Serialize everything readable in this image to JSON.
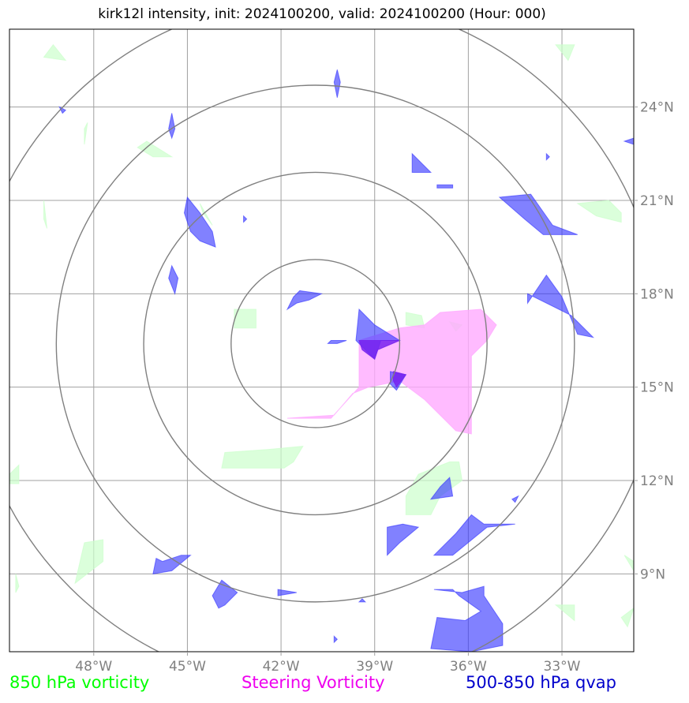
{
  "title": "kirk12l intensity, init: 2024100200, valid: 2024100200 (Hour: 000)",
  "map": {
    "lon_range": [
      -50.7,
      -30.7
    ],
    "lat_range": [
      6.5,
      26.5
    ],
    "lon_ticks": [
      {
        "value": -48,
        "label": "48°W"
      },
      {
        "value": -45,
        "label": "45°W"
      },
      {
        "value": -42,
        "label": "42°W"
      },
      {
        "value": -39,
        "label": "39°W"
      },
      {
        "value": -36,
        "label": "36°W"
      },
      {
        "value": -33,
        "label": "33°W"
      }
    ],
    "lat_ticks": [
      {
        "value": 24,
        "label": "24°N"
      },
      {
        "value": 21,
        "label": "21°N"
      },
      {
        "value": 18,
        "label": "18°N"
      },
      {
        "value": 15,
        "label": "15°N"
      },
      {
        "value": 12,
        "label": "12°N"
      },
      {
        "value": 9,
        "label": "9°N"
      }
    ],
    "range_rings": {
      "center": [
        -40.9,
        16.4
      ],
      "radii_deg": [
        2.7,
        5.5,
        8.3,
        11.1
      ]
    },
    "colors": {
      "vorticity_850": "#ccffcc",
      "steering_vorticity": "#ffaaff",
      "qvap": "#3333ff",
      "overlap": "#7722ee",
      "grid": "#a0a0a0",
      "rings": "#808080"
    },
    "steering_vorticity_fields": [
      [
        [
          -39.5,
          16.5
        ],
        [
          -38.2,
          16.9
        ],
        [
          -37.4,
          17.0
        ],
        [
          -36.9,
          17.4
        ],
        [
          -35.6,
          17.5
        ],
        [
          -35.1,
          17.0
        ],
        [
          -35.4,
          16.5
        ],
        [
          -35.9,
          16.0
        ],
        [
          -35.9,
          13.5
        ],
        [
          -36.4,
          13.6
        ],
        [
          -37.4,
          14.6
        ],
        [
          -38.2,
          15.2
        ],
        [
          -39.2,
          15.0
        ],
        [
          -39.7,
          14.8
        ],
        [
          -40.3,
          14.1
        ],
        [
          -41.8,
          14.0
        ],
        [
          -40.4,
          14.0
        ],
        [
          -39.5,
          15.0
        ]
      ]
    ],
    "vorticity_850_fields": [
      [
        [
          -49.3,
          26.0
        ],
        [
          -48.9,
          25.5
        ],
        [
          -49.6,
          25.6
        ]
      ],
      [
        [
          -33.2,
          26.0
        ],
        [
          -32.6,
          26.0
        ],
        [
          -32.8,
          25.5
        ]
      ],
      [
        [
          -46.3,
          22.9
        ],
        [
          -45.5,
          22.4
        ],
        [
          -46.1,
          22.4
        ],
        [
          -46.6,
          22.7
        ]
      ],
      [
        [
          -48.3,
          22.8
        ],
        [
          -48.2,
          23.5
        ],
        [
          -48.3,
          23.3
        ]
      ],
      [
        [
          -49.6,
          21.0
        ],
        [
          -49.5,
          20.1
        ],
        [
          -49.6,
          20.4
        ]
      ],
      [
        [
          -32.5,
          20.9
        ],
        [
          -31.5,
          21.0
        ],
        [
          -31.1,
          20.6
        ],
        [
          -31.1,
          20.3
        ],
        [
          -31.9,
          20.5
        ]
      ],
      [
        [
          -44.6,
          20.9
        ],
        [
          -44.2,
          20.2
        ],
        [
          -44.5,
          20.6
        ]
      ],
      [
        [
          -43.5,
          17.5
        ],
        [
          -42.8,
          17.5
        ],
        [
          -42.8,
          16.9
        ],
        [
          -43.5,
          16.9
        ]
      ],
      [
        [
          -38.0,
          17.4
        ],
        [
          -37.5,
          17.3
        ],
        [
          -37.4,
          16.9
        ],
        [
          -38.0,
          17.0
        ]
      ],
      [
        [
          -36.6,
          17.1
        ],
        [
          -36.2,
          17.0
        ],
        [
          -36.4,
          16.8
        ]
      ],
      [
        [
          -43.8,
          12.9
        ],
        [
          -42.4,
          13.0
        ],
        [
          -41.3,
          13.1
        ],
        [
          -41.6,
          12.6
        ],
        [
          -41.9,
          12.4
        ],
        [
          -43.9,
          12.4
        ]
      ],
      [
        [
          -37.6,
          12.2
        ],
        [
          -36.6,
          12.6
        ],
        [
          -36.3,
          12.6
        ],
        [
          -36.2,
          12.0
        ],
        [
          -36.9,
          11.5
        ],
        [
          -37.2,
          10.9
        ],
        [
          -38.0,
          10.9
        ],
        [
          -38.0,
          11.5
        ]
      ],
      [
        [
          -50.7,
          12.2
        ],
        [
          -50.4,
          12.5
        ],
        [
          -50.4,
          11.9
        ],
        [
          -50.7,
          11.9
        ]
      ],
      [
        [
          -30.7,
          12.9
        ],
        [
          -30.3,
          12.9
        ],
        [
          -30.3,
          12.5
        ],
        [
          -30.7,
          12.4
        ]
      ],
      [
        [
          -48.3,
          10.0
        ],
        [
          -47.7,
          10.1
        ],
        [
          -47.7,
          9.4
        ],
        [
          -48.6,
          8.7
        ]
      ],
      [
        [
          -50.5,
          9.0
        ],
        [
          -50.4,
          8.6
        ],
        [
          -50.5,
          8.4
        ]
      ],
      [
        [
          -31.0,
          9.6
        ],
        [
          -30.7,
          9.4
        ],
        [
          -30.7,
          9.1
        ]
      ],
      [
        [
          -33.2,
          8.0
        ],
        [
          -32.6,
          7.5
        ],
        [
          -32.6,
          8.0
        ]
      ],
      [
        [
          -31.1,
          7.6
        ],
        [
          -30.7,
          7.9
        ],
        [
          -30.9,
          7.3
        ]
      ]
    ],
    "qvap_fields": [
      [
        [
          -40.2,
          25.2
        ],
        [
          -40.1,
          24.8
        ],
        [
          -40.2,
          24.3
        ],
        [
          -40.3,
          24.8
        ]
      ],
      [
        [
          -49.1,
          24.0
        ],
        [
          -48.9,
          23.9
        ],
        [
          -49.0,
          23.8
        ]
      ],
      [
        [
          -45.5,
          23.8
        ],
        [
          -45.4,
          23.3
        ],
        [
          -45.5,
          23.0
        ],
        [
          -45.6,
          23.3
        ]
      ],
      [
        [
          -37.8,
          22.5
        ],
        [
          -37.2,
          21.9
        ],
        [
          -37.8,
          21.9
        ]
      ],
      [
        [
          -37.0,
          21.5
        ],
        [
          -36.5,
          21.5
        ],
        [
          -36.5,
          21.4
        ],
        [
          -37.0,
          21.4
        ]
      ],
      [
        [
          -30.7,
          23.0
        ],
        [
          -31.0,
          22.9
        ],
        [
          -30.7,
          22.8
        ]
      ],
      [
        [
          -35.0,
          21.1
        ],
        [
          -34.0,
          21.2
        ],
        [
          -33.3,
          20.2
        ],
        [
          -32.5,
          19.9
        ],
        [
          -33.6,
          19.9
        ],
        [
          -34.2,
          20.4
        ]
      ],
      [
        [
          -45.0,
          21.1
        ],
        [
          -44.6,
          20.6
        ],
        [
          -44.2,
          20.0
        ],
        [
          -44.1,
          19.5
        ],
        [
          -44.6,
          19.7
        ],
        [
          -44.9,
          20.0
        ],
        [
          -45.1,
          20.6
        ]
      ],
      [
        [
          -45.5,
          18.9
        ],
        [
          -45.3,
          18.5
        ],
        [
          -45.4,
          18.0
        ],
        [
          -45.6,
          18.5
        ]
      ],
      [
        [
          -41.4,
          18.1
        ],
        [
          -40.7,
          18.0
        ],
        [
          -41.1,
          17.8
        ],
        [
          -41.5,
          17.7
        ],
        [
          -41.8,
          17.5
        ],
        [
          -41.6,
          17.9
        ]
      ],
      [
        [
          -33.5,
          18.6
        ],
        [
          -33.0,
          17.9
        ],
        [
          -32.5,
          16.7
        ],
        [
          -32.0,
          16.6
        ],
        [
          -32.7,
          17.3
        ],
        [
          -33.3,
          17.6
        ],
        [
          -34.1,
          18.0
        ],
        [
          -34.1,
          17.7
        ]
      ],
      [
        [
          -39.5,
          17.5
        ],
        [
          -39.0,
          17.0
        ],
        [
          -38.2,
          16.5
        ],
        [
          -38.8,
          16.5
        ],
        [
          -39.0,
          15.9
        ],
        [
          -39.6,
          16.5
        ]
      ],
      [
        [
          -40.4,
          16.5
        ],
        [
          -39.9,
          16.5
        ],
        [
          -40.2,
          16.4
        ],
        [
          -40.5,
          16.4
        ]
      ],
      [
        [
          -38.5,
          15.5
        ],
        [
          -38.0,
          15.4
        ],
        [
          -38.3,
          14.9
        ],
        [
          -38.5,
          15.1
        ]
      ],
      [
        [
          -36.6,
          12.1
        ],
        [
          -36.5,
          11.5
        ],
        [
          -37.2,
          11.4
        ],
        [
          -36.9,
          11.8
        ]
      ],
      [
        [
          -34.6,
          11.4
        ],
        [
          -34.4,
          11.5
        ],
        [
          -34.5,
          11.3
        ]
      ],
      [
        [
          -38.1,
          10.6
        ],
        [
          -37.6,
          10.5
        ],
        [
          -38.2,
          10.0
        ],
        [
          -38.6,
          9.6
        ],
        [
          -38.6,
          10.5
        ]
      ],
      [
        [
          -35.9,
          10.9
        ],
        [
          -35.5,
          10.6
        ],
        [
          -34.5,
          10.6
        ],
        [
          -35.4,
          10.5
        ],
        [
          -36.5,
          9.6
        ],
        [
          -37.1,
          9.6
        ],
        [
          -36.4,
          10.3
        ]
      ],
      [
        [
          -45.8,
          9.4
        ],
        [
          -45.2,
          9.6
        ],
        [
          -44.9,
          9.6
        ],
        [
          -45.5,
          9.1
        ],
        [
          -46.1,
          9.0
        ],
        [
          -46.0,
          9.5
        ]
      ],
      [
        [
          -43.9,
          8.8
        ],
        [
          -43.4,
          8.4
        ],
        [
          -43.8,
          8.0
        ],
        [
          -44.0,
          7.9
        ],
        [
          -44.2,
          8.3
        ]
      ],
      [
        [
          -42.1,
          8.5
        ],
        [
          -41.5,
          8.4
        ],
        [
          -42.1,
          8.3
        ]
      ],
      [
        [
          -39.4,
          8.2
        ],
        [
          -39.3,
          8.1
        ],
        [
          -39.5,
          8.1
        ]
      ],
      [
        [
          -40.3,
          7.0
        ],
        [
          -40.2,
          6.9
        ],
        [
          -40.3,
          6.8
        ]
      ],
      [
        [
          -35.5,
          8.6
        ],
        [
          -35.5,
          8.3
        ],
        [
          -34.9,
          7.4
        ],
        [
          -34.9,
          6.7
        ],
        [
          -35.9,
          6.5
        ],
        [
          -37.2,
          6.6
        ],
        [
          -37.0,
          7.6
        ],
        [
          -36.1,
          7.5
        ],
        [
          -35.6,
          7.8
        ],
        [
          -36.3,
          8.3
        ],
        [
          -36.5,
          8.5
        ],
        [
          -37.1,
          8.5
        ],
        [
          -36.2,
          8.4
        ]
      ],
      [
        [
          -33.5,
          22.5
        ],
        [
          -33.4,
          22.4
        ],
        [
          -33.5,
          22.3
        ]
      ],
      [
        [
          -43.2,
          20.5
        ],
        [
          -43.1,
          20.4
        ],
        [
          -43.2,
          20.3
        ]
      ]
    ],
    "overlap_fields": [
      [
        [
          -39.5,
          16.5
        ],
        [
          -38.2,
          16.5
        ],
        [
          -38.9,
          16.2
        ],
        [
          -39.0,
          15.9
        ],
        [
          -39.4,
          16.2
        ]
      ],
      [
        [
          -38.4,
          15.5
        ],
        [
          -38.0,
          15.4
        ],
        [
          -38.3,
          15.0
        ],
        [
          -38.4,
          15.2
        ]
      ]
    ]
  },
  "legend": {
    "vorticity_850": "850 hPa vorticity",
    "steering_vorticity": "Steering Vorticity",
    "qvap": "500-850 hPa qvap"
  }
}
